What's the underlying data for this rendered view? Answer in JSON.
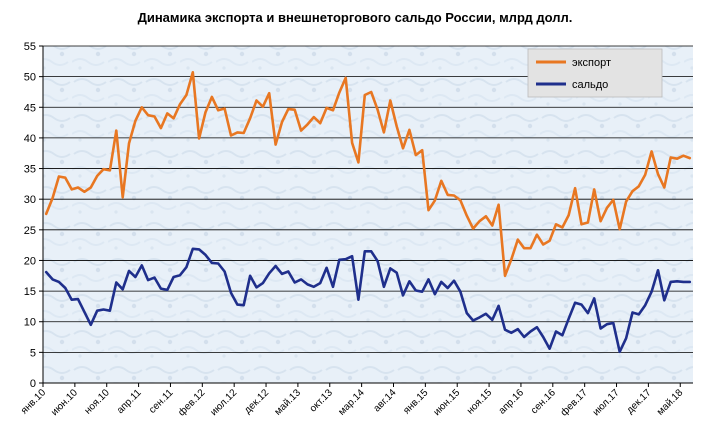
{
  "chart_data": {
    "type": "line",
    "title": "Динамика экспорта и внешнеторгового сальдо России, млрд долл.",
    "xlabel": "",
    "ylabel": "",
    "ylim": [
      0,
      55
    ],
    "yticks": [
      0,
      5,
      10,
      15,
      20,
      25,
      30,
      35,
      40,
      45,
      50,
      55
    ],
    "grid": true,
    "legend": "top-right",
    "x_ticks": [
      {
        "index": 0,
        "label": "янв.10"
      },
      {
        "index": 5,
        "label": "июн.10"
      },
      {
        "index": 10,
        "label": "ноя.10"
      },
      {
        "index": 15,
        "label": "апр.11"
      },
      {
        "index": 20,
        "label": "сен.11"
      },
      {
        "index": 25,
        "label": "фев.12"
      },
      {
        "index": 30,
        "label": "июл.12"
      },
      {
        "index": 35,
        "label": "дек.12"
      },
      {
        "index": 40,
        "label": "май.13"
      },
      {
        "index": 45,
        "label": "окт.13"
      },
      {
        "index": 50,
        "label": "мар.14"
      },
      {
        "index": 55,
        "label": "авг.14"
      },
      {
        "index": 60,
        "label": "янв.15"
      },
      {
        "index": 65,
        "label": "июн.15"
      },
      {
        "index": 70,
        "label": "ноя.15"
      },
      {
        "index": 75,
        "label": "апр.16"
      },
      {
        "index": 80,
        "label": "сен.16"
      },
      {
        "index": 85,
        "label": "фев.17"
      },
      {
        "index": 90,
        "label": "июл.17"
      },
      {
        "index": 95,
        "label": "дек.17"
      },
      {
        "index": 100,
        "label": "май.18"
      }
    ],
    "series": [
      {
        "name": "экспорт",
        "color": "#e87722",
        "values": [
          27.6,
          30.2,
          33.7,
          33.5,
          31.6,
          31.9,
          31.2,
          31.9,
          33.8,
          34.9,
          34.7,
          41.2,
          30.3,
          39.1,
          42.8,
          45.0,
          43.7,
          43.5,
          41.6,
          44.0,
          43.2,
          45.5,
          47.0,
          50.7,
          39.9,
          44.2,
          46.7,
          44.5,
          44.8,
          40.4,
          40.9,
          40.8,
          43.2,
          46.1,
          45.1,
          47.3,
          38.9,
          42.6,
          44.7,
          44.6,
          41.2,
          42.2,
          43.4,
          42.4,
          44.9,
          44.5,
          47.4,
          49.8,
          39.2,
          36.0,
          47.0,
          47.5,
          44.6,
          40.9,
          46.1,
          41.9,
          38.3,
          41.3,
          37.2,
          38.0,
          28.2,
          29.8,
          33.0,
          30.7,
          30.6,
          29.8,
          27.3,
          25.2,
          26.4,
          27.2,
          25.7,
          29.1,
          17.5,
          20.2,
          23.4,
          22.0,
          22.0,
          24.2,
          22.6,
          23.2,
          25.9,
          25.4,
          27.4,
          31.8,
          25.9,
          26.2,
          31.6,
          26.4,
          28.6,
          29.9,
          25.1,
          29.6,
          31.3,
          32.1,
          34.0,
          37.8,
          34.1,
          31.9,
          36.8,
          36.6,
          37.1,
          36.7
        ]
      },
      {
        "name": "сальдо",
        "color": "#1f2f8c",
        "values": [
          18.1,
          16.9,
          16.5,
          15.5,
          13.6,
          13.7,
          11.6,
          9.5,
          11.8,
          12.0,
          11.8,
          16.4,
          15.3,
          18.3,
          17.3,
          19.2,
          16.8,
          17.2,
          15.4,
          15.2,
          17.3,
          17.6,
          18.9,
          21.9,
          21.8,
          20.9,
          19.6,
          19.5,
          18.2,
          14.7,
          12.8,
          12.7,
          17.5,
          15.6,
          16.3,
          17.9,
          19.1,
          17.8,
          18.2,
          16.4,
          16.9,
          16.1,
          15.7,
          16.3,
          18.8,
          15.7,
          20.1,
          20.2,
          20.7,
          13.6,
          21.5,
          21.5,
          19.9,
          15.7,
          18.7,
          18.0,
          14.3,
          16.6,
          15.1,
          14.9,
          16.9,
          14.5,
          16.5,
          15.5,
          16.7,
          14.9,
          11.4,
          10.2,
          10.7,
          11.3,
          10.3,
          12.6,
          8.7,
          8.2,
          8.8,
          7.5,
          8.4,
          9.1,
          7.5,
          5.6,
          8.4,
          7.8,
          10.5,
          13.1,
          12.8,
          11.4,
          13.8,
          8.9,
          9.6,
          9.8,
          5.1,
          7.3,
          11.5,
          11.2,
          12.7,
          14.9,
          18.4,
          13.5,
          16.5,
          16.6,
          16.5,
          16.5
        ]
      }
    ]
  }
}
